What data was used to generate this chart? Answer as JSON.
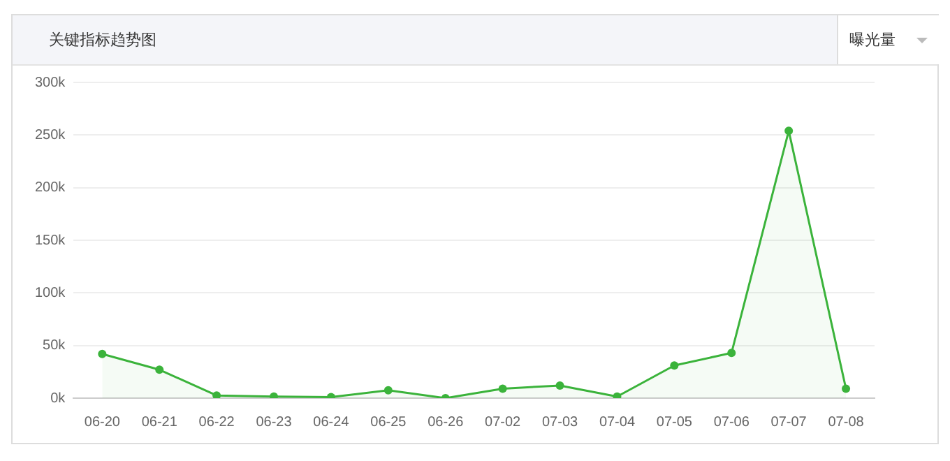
{
  "chart_data": {
    "type": "area",
    "title": "关键指标趋势图",
    "annotations": [
      "曝光量"
    ],
    "categories": [
      "06-20",
      "06-21",
      "06-22",
      "06-23",
      "06-24",
      "06-25",
      "06-26",
      "07-02",
      "07-03",
      "07-04",
      "07-05",
      "07-06",
      "07-07",
      "07-08"
    ],
    "series": [
      {
        "color": "#3bb33b",
        "values": [
          42000,
          27000,
          2500,
          1500,
          1000,
          7500,
          0,
          9000,
          12000,
          1500,
          31000,
          43000,
          254000,
          9000
        ]
      }
    ],
    "ylim": [
      0,
      300000
    ],
    "yticks": [
      {
        "value": 0,
        "label": "0k"
      },
      {
        "value": 50000,
        "label": "50k"
      },
      {
        "value": 100000,
        "label": "100k"
      },
      {
        "value": 150000,
        "label": "150k"
      },
      {
        "value": 200000,
        "label": "200k"
      },
      {
        "value": 250000,
        "label": "250k"
      },
      {
        "value": 300000,
        "label": "300k"
      }
    ],
    "grid": "y",
    "marker": "circle",
    "legend": false
  }
}
